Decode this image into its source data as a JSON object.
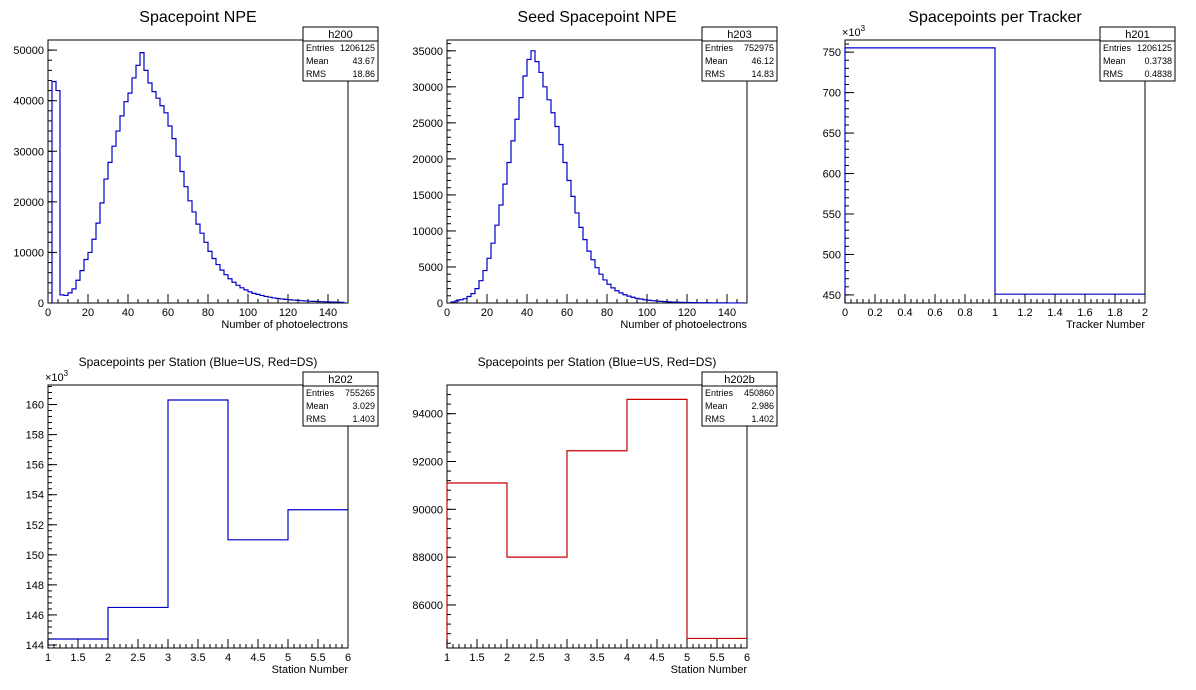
{
  "chart_data": [
    {
      "type": "histogram",
      "title": "Spacepoint NPE",
      "xlabel": "Number of photoelectrons",
      "ylabel": "",
      "xlim": [
        0,
        150
      ],
      "ylim": [
        0,
        52000
      ],
      "xticks": [
        "0",
        "20",
        "40",
        "60",
        "80",
        "100",
        "120",
        "140"
      ],
      "yticks": [
        "0",
        "10000",
        "20000",
        "30000",
        "40000",
        "50000"
      ],
      "color": "#0000cc",
      "stats": {
        "name": "h200",
        "rows": [
          [
            "Entries",
            "1206125"
          ],
          [
            "Mean",
            "43.67"
          ],
          [
            "RMS",
            "18.86"
          ]
        ]
      },
      "bin_edges_start": 2,
      "bin_width": 2,
      "values": [
        43800,
        42000,
        1600,
        1500,
        2000,
        2800,
        4500,
        6400,
        8600,
        10000,
        12600,
        15800,
        19800,
        24500,
        27800,
        31000,
        34000,
        37000,
        39800,
        41500,
        44500,
        47000,
        49500,
        46000,
        43500,
        41800,
        40500,
        39000,
        37600,
        35000,
        32500,
        29000,
        26000,
        23000,
        20200,
        18000,
        15600,
        13800,
        12000,
        10200,
        8800,
        7600,
        6500,
        5600,
        4800,
        4100,
        3500,
        3000,
        2600,
        2200,
        1900,
        1700,
        1500,
        1300,
        1150,
        1000,
        900,
        800,
        720,
        650,
        580,
        520,
        460,
        410,
        360,
        320,
        290,
        260,
        230,
        200,
        180,
        160,
        140
      ]
    },
    {
      "type": "histogram",
      "title": "Seed Spacepoint NPE",
      "xlabel": "Number of photoelectrons",
      "ylabel": "",
      "xlim": [
        0,
        150
      ],
      "ylim": [
        0,
        36500
      ],
      "xticks": [
        "0",
        "20",
        "40",
        "60",
        "80",
        "100",
        "120",
        "140"
      ],
      "yticks": [
        "0",
        "5000",
        "10000",
        "15000",
        "20000",
        "25000",
        "30000",
        "35000"
      ],
      "color": "#0000cc",
      "stats": {
        "name": "h203",
        "rows": [
          [
            "Entries",
            "752975"
          ],
          [
            "Mean",
            "46.12"
          ],
          [
            "RMS",
            "14.83"
          ]
        ]
      },
      "bin_edges_start": 2,
      "bin_width": 2,
      "values": [
        150,
        300,
        450,
        600,
        900,
        1300,
        2000,
        3100,
        4500,
        6200,
        8300,
        10800,
        13600,
        16500,
        19500,
        22500,
        25500,
        28500,
        31500,
        33800,
        35000,
        33500,
        32000,
        30000,
        28200,
        26400,
        24500,
        22000,
        19500,
        17000,
        14800,
        12500,
        10500,
        8800,
        7200,
        6000,
        4900,
        4000,
        3200,
        2600,
        2100,
        1700,
        1400,
        1150,
        950,
        800,
        650,
        550,
        450,
        380,
        320,
        270,
        230,
        190,
        160,
        130,
        110,
        95,
        80,
        65,
        55,
        45,
        40,
        35,
        30,
        25,
        20,
        18,
        15,
        12,
        10,
        8,
        6
      ]
    },
    {
      "type": "histogram",
      "title": "Spacepoints per Tracker",
      "xlabel": "Tracker Number",
      "ylabel": "",
      "multiplier": "×10",
      "multiplier_exp": "3",
      "xlim": [
        0,
        2
      ],
      "ylim": [
        440,
        765
      ],
      "xticks": [
        "0",
        "0.2",
        "0.4",
        "0.6",
        "0.8",
        "1",
        "1.2",
        "1.4",
        "1.6",
        "1.8",
        "2"
      ],
      "yticks": [
        "450",
        "500",
        "550",
        "600",
        "650",
        "700",
        "750"
      ],
      "color": "#0000cc",
      "stats": {
        "name": "h201",
        "rows": [
          [
            "Entries",
            "1206125"
          ],
          [
            "Mean",
            "0.3738"
          ],
          [
            "RMS",
            "0.4838"
          ]
        ]
      },
      "bin_edges_start": 0,
      "bin_width": 1,
      "values": [
        755.3,
        450.9
      ]
    },
    {
      "type": "histogram",
      "title": "Spacepoints per Station (Blue=US, Red=DS)",
      "xlabel": "Station Number",
      "ylabel": "",
      "multiplier": "×10",
      "multiplier_exp": "3",
      "xlim": [
        1,
        6
      ],
      "ylim": [
        143.8,
        161.3
      ],
      "xticks": [
        "1",
        "1.5",
        "2",
        "2.5",
        "3",
        "3.5",
        "4",
        "4.5",
        "5",
        "5.5",
        "6"
      ],
      "yticks": [
        "144",
        "146",
        "148",
        "150",
        "152",
        "154",
        "156",
        "158",
        "160"
      ],
      "color": "#0000cc",
      "stats": {
        "name": "h202",
        "rows": [
          [
            "Entries",
            "755265"
          ],
          [
            "Mean",
            "3.029"
          ],
          [
            "RMS",
            "1.403"
          ]
        ]
      },
      "bin_edges_start": 1,
      "bin_width": 1,
      "values": [
        144.4,
        146.5,
        160.3,
        151.0,
        153.0
      ]
    },
    {
      "type": "histogram",
      "title": "Spacepoints per Station (Blue=US, Red=DS)",
      "xlabel": "Station Number",
      "ylabel": "",
      "xlim": [
        1,
        6
      ],
      "ylim": [
        84200,
        95200
      ],
      "xticks": [
        "1",
        "1.5",
        "2",
        "2.5",
        "3",
        "3.5",
        "4",
        "4.5",
        "5",
        "5.5",
        "6"
      ],
      "yticks": [
        "86000",
        "88000",
        "90000",
        "92000",
        "94000"
      ],
      "color": "#cc0000",
      "stats": {
        "name": "h202b",
        "rows": [
          [
            "Entries",
            "450860"
          ],
          [
            "Mean",
            "2.986"
          ],
          [
            "RMS",
            "1.402"
          ]
        ]
      },
      "bin_edges_start": 1,
      "bin_width": 1,
      "values": [
        91100,
        88000,
        92450,
        94600,
        84600
      ]
    }
  ]
}
